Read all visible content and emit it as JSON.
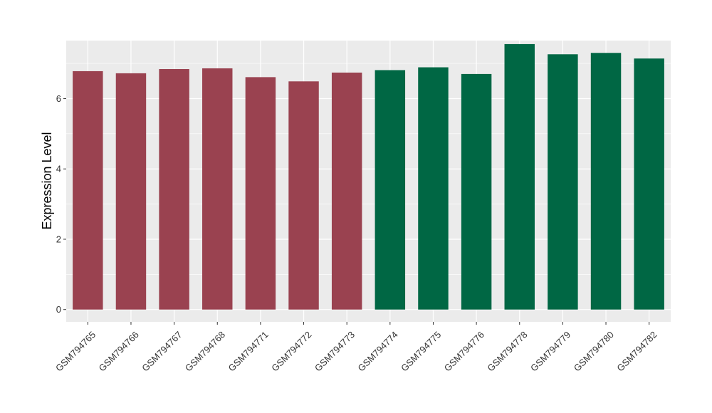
{
  "chart_data": {
    "type": "bar",
    "ylabel": "Expression Level",
    "xlabel": "",
    "ylim": [
      -0.35,
      7.65
    ],
    "yticks": [
      0,
      2,
      4,
      6
    ],
    "grid": true,
    "legend": "none",
    "categories": [
      "GSM794765",
      "GSM794766",
      "GSM794767",
      "GSM794768",
      "GSM794771",
      "GSM794772",
      "GSM794773",
      "GSM794774",
      "GSM794775",
      "GSM794776",
      "GSM794778",
      "GSM794779",
      "GSM794780",
      "GSM794782"
    ],
    "values": [
      6.78,
      6.72,
      6.84,
      6.86,
      6.61,
      6.49,
      6.74,
      6.81,
      6.89,
      6.7,
      7.55,
      7.26,
      7.3,
      7.14
    ],
    "groups": [
      0,
      0,
      0,
      0,
      0,
      0,
      0,
      1,
      1,
      1,
      1,
      1,
      1,
      1
    ],
    "group_colors": [
      "#9a4250",
      "#006744"
    ],
    "panel_background": "#ebebeb",
    "grid_color": "#ffffff"
  }
}
